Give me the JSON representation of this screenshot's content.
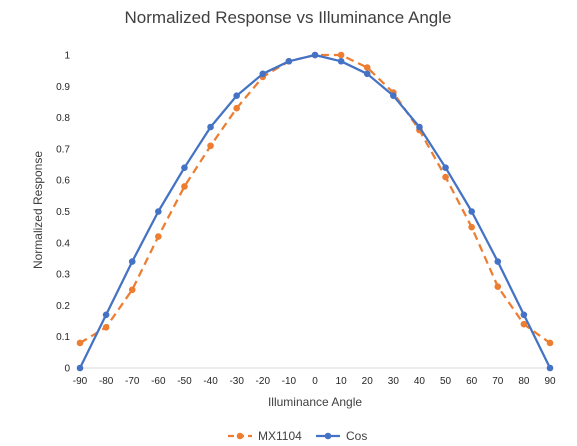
{
  "chart_data": {
    "type": "line",
    "title": "Normalized Response vs Illuminance Angle",
    "xlabel": "Illuminance Angle",
    "ylabel": "Normalized Response",
    "x": [
      -90,
      -80,
      -70,
      -60,
      -50,
      -40,
      -30,
      -20,
      -10,
      0,
      10,
      20,
      30,
      40,
      50,
      60,
      70,
      80,
      90
    ],
    "xlim": [
      -90,
      90
    ],
    "ylim": [
      0,
      1
    ],
    "x_ticks": [
      "-90",
      "-80",
      "-70",
      "-60",
      "-50",
      "-40",
      "-30",
      "-20",
      "-10",
      "0",
      "10",
      "20",
      "30",
      "40",
      "50",
      "60",
      "70",
      "80",
      "90"
    ],
    "y_ticks": [
      "0",
      "0.1",
      "0.2",
      "0.3",
      "0.4",
      "0.5",
      "0.6",
      "0.7",
      "0.8",
      "0.9",
      "1"
    ],
    "grid": false,
    "legend_position": "bottom",
    "series": [
      {
        "name": "MX1104",
        "color": "#ED7D31",
        "dash": true,
        "values": [
          0.08,
          0.13,
          0.25,
          0.42,
          0.58,
          0.71,
          0.83,
          0.93,
          0.98,
          1.0,
          1.0,
          0.96,
          0.88,
          0.76,
          0.61,
          0.45,
          0.26,
          0.14,
          0.08
        ]
      },
      {
        "name": "Cos",
        "color": "#4472C4",
        "dash": false,
        "values": [
          0.0,
          0.17,
          0.34,
          0.5,
          0.64,
          0.77,
          0.87,
          0.94,
          0.98,
          1.0,
          0.98,
          0.94,
          0.87,
          0.77,
          0.64,
          0.5,
          0.34,
          0.17,
          0.0
        ]
      }
    ]
  }
}
